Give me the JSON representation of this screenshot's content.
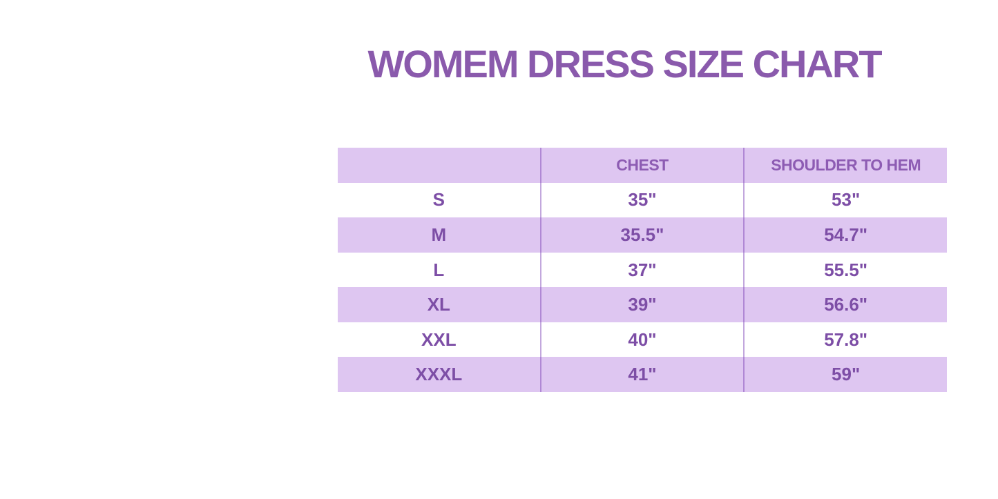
{
  "page": {
    "title": "WOMEM DRESS SIZE CHART"
  },
  "colors": {
    "title_text": "#8a5aac",
    "header_text": "#8d5cb3",
    "cell_text": "#7d4ea6",
    "band_lavender": "#dec6f1",
    "band_white": "#ffffff",
    "column_divider": "#b88dd8"
  },
  "chart_data": {
    "type": "table",
    "title": "WOMEM DRESS SIZE CHART",
    "columns": [
      "",
      "CHEST",
      "SHOULDER TO HEM"
    ],
    "rows": [
      [
        "S",
        "35\"",
        "53\""
      ],
      [
        "M",
        "35.5\"",
        "54.7\""
      ],
      [
        "L",
        "37\"",
        "55.5\""
      ],
      [
        "XL",
        "39\"",
        "56.6\""
      ],
      [
        "XXL",
        "40\"",
        "57.8\""
      ],
      [
        "XXXL",
        "41\"",
        "59\""
      ]
    ],
    "layout_hints": {
      "row_striping": "header and even data rows lavender, odd data rows white",
      "grid": "vertical column dividers only, no horizontal or outer borders",
      "alignment": "all cells centered"
    }
  }
}
